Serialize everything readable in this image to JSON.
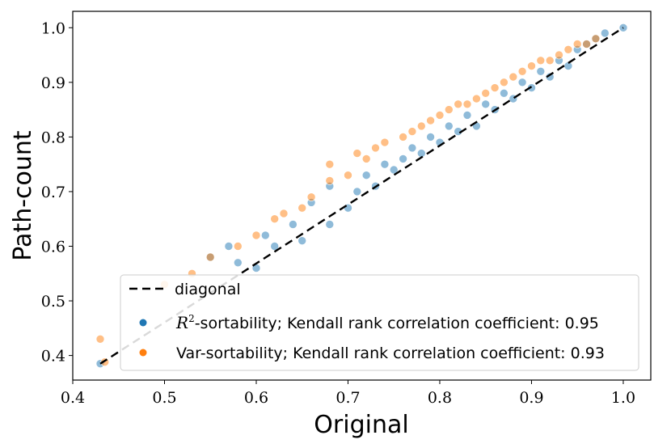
{
  "colors": {
    "r2": "#1f77b4",
    "var": "#ff7f0e",
    "diagonal": "#000000"
  },
  "chart_data": {
    "type": "scatter",
    "title": "",
    "xlabel": "Original",
    "ylabel": "Path-count",
    "xlim": [
      0.4,
      1.03
    ],
    "ylim": [
      0.355,
      1.03
    ],
    "x_ticks": [
      0.4,
      0.5,
      0.6,
      0.7,
      0.8,
      0.9,
      1.0
    ],
    "x_tick_labels": [
      "0.4",
      "0.5",
      "0.6",
      "0.7",
      "0.8",
      "0.9",
      "1.0"
    ],
    "y_ticks": [
      0.4,
      0.5,
      0.6,
      0.7,
      0.8,
      0.9,
      1.0
    ],
    "y_tick_labels": [
      "0.4",
      "0.5",
      "0.6",
      "0.7",
      "0.8",
      "0.9",
      "1.0"
    ],
    "grid": false,
    "legend_position": "bottom-right",
    "diagonal": {
      "name": "diagonal",
      "x": [
        0.43,
        1.0
      ],
      "y": [
        0.385,
        1.0
      ]
    },
    "legend": {
      "diagonal_label": "diagonal",
      "r2_symbol": "R",
      "r2_superscript": "2",
      "r2_label": "-sortability; Kendall rank correlation coefficient: 0.95",
      "var_label": "Var-sortability; Kendall rank correlation coefficient: 0.93"
    },
    "series": [
      {
        "name": "R2-sortability",
        "kendall_tau": 0.95,
        "points": [
          [
            0.43,
            0.385
          ],
          [
            0.55,
            0.58
          ],
          [
            0.57,
            0.6
          ],
          [
            0.58,
            0.57
          ],
          [
            0.6,
            0.56
          ],
          [
            0.61,
            0.62
          ],
          [
            0.62,
            0.6
          ],
          [
            0.64,
            0.64
          ],
          [
            0.65,
            0.61
          ],
          [
            0.66,
            0.68
          ],
          [
            0.68,
            0.64
          ],
          [
            0.68,
            0.71
          ],
          [
            0.7,
            0.67
          ],
          [
            0.71,
            0.7
          ],
          [
            0.72,
            0.73
          ],
          [
            0.73,
            0.71
          ],
          [
            0.74,
            0.75
          ],
          [
            0.75,
            0.74
          ],
          [
            0.76,
            0.76
          ],
          [
            0.77,
            0.78
          ],
          [
            0.78,
            0.77
          ],
          [
            0.79,
            0.8
          ],
          [
            0.8,
            0.79
          ],
          [
            0.81,
            0.82
          ],
          [
            0.82,
            0.81
          ],
          [
            0.83,
            0.84
          ],
          [
            0.84,
            0.82
          ],
          [
            0.85,
            0.86
          ],
          [
            0.86,
            0.85
          ],
          [
            0.87,
            0.88
          ],
          [
            0.88,
            0.87
          ],
          [
            0.89,
            0.9
          ],
          [
            0.9,
            0.89
          ],
          [
            0.91,
            0.92
          ],
          [
            0.92,
            0.91
          ],
          [
            0.93,
            0.94
          ],
          [
            0.94,
            0.93
          ],
          [
            0.95,
            0.96
          ],
          [
            0.96,
            0.97
          ],
          [
            0.97,
            0.98
          ],
          [
            0.98,
            0.99
          ],
          [
            1.0,
            1.0
          ]
        ]
      },
      {
        "name": "Var-sortability",
        "kendall_tau": 0.93,
        "points": [
          [
            0.43,
            0.43
          ],
          [
            0.435,
            0.388
          ],
          [
            0.5,
            0.53
          ],
          [
            0.53,
            0.55
          ],
          [
            0.55,
            0.58
          ],
          [
            0.58,
            0.6
          ],
          [
            0.6,
            0.62
          ],
          [
            0.62,
            0.65
          ],
          [
            0.63,
            0.66
          ],
          [
            0.65,
            0.67
          ],
          [
            0.66,
            0.69
          ],
          [
            0.68,
            0.72
          ],
          [
            0.68,
            0.75
          ],
          [
            0.7,
            0.73
          ],
          [
            0.71,
            0.77
          ],
          [
            0.72,
            0.76
          ],
          [
            0.73,
            0.78
          ],
          [
            0.74,
            0.79
          ],
          [
            0.76,
            0.8
          ],
          [
            0.77,
            0.81
          ],
          [
            0.78,
            0.82
          ],
          [
            0.79,
            0.83
          ],
          [
            0.8,
            0.84
          ],
          [
            0.81,
            0.85
          ],
          [
            0.82,
            0.86
          ],
          [
            0.83,
            0.86
          ],
          [
            0.84,
            0.87
          ],
          [
            0.85,
            0.88
          ],
          [
            0.86,
            0.89
          ],
          [
            0.87,
            0.9
          ],
          [
            0.88,
            0.91
          ],
          [
            0.89,
            0.92
          ],
          [
            0.9,
            0.93
          ],
          [
            0.91,
            0.94
          ],
          [
            0.92,
            0.94
          ],
          [
            0.93,
            0.95
          ],
          [
            0.94,
            0.96
          ],
          [
            0.95,
            0.97
          ],
          [
            0.96,
            0.97
          ],
          [
            0.97,
            0.98
          ]
        ]
      }
    ]
  }
}
